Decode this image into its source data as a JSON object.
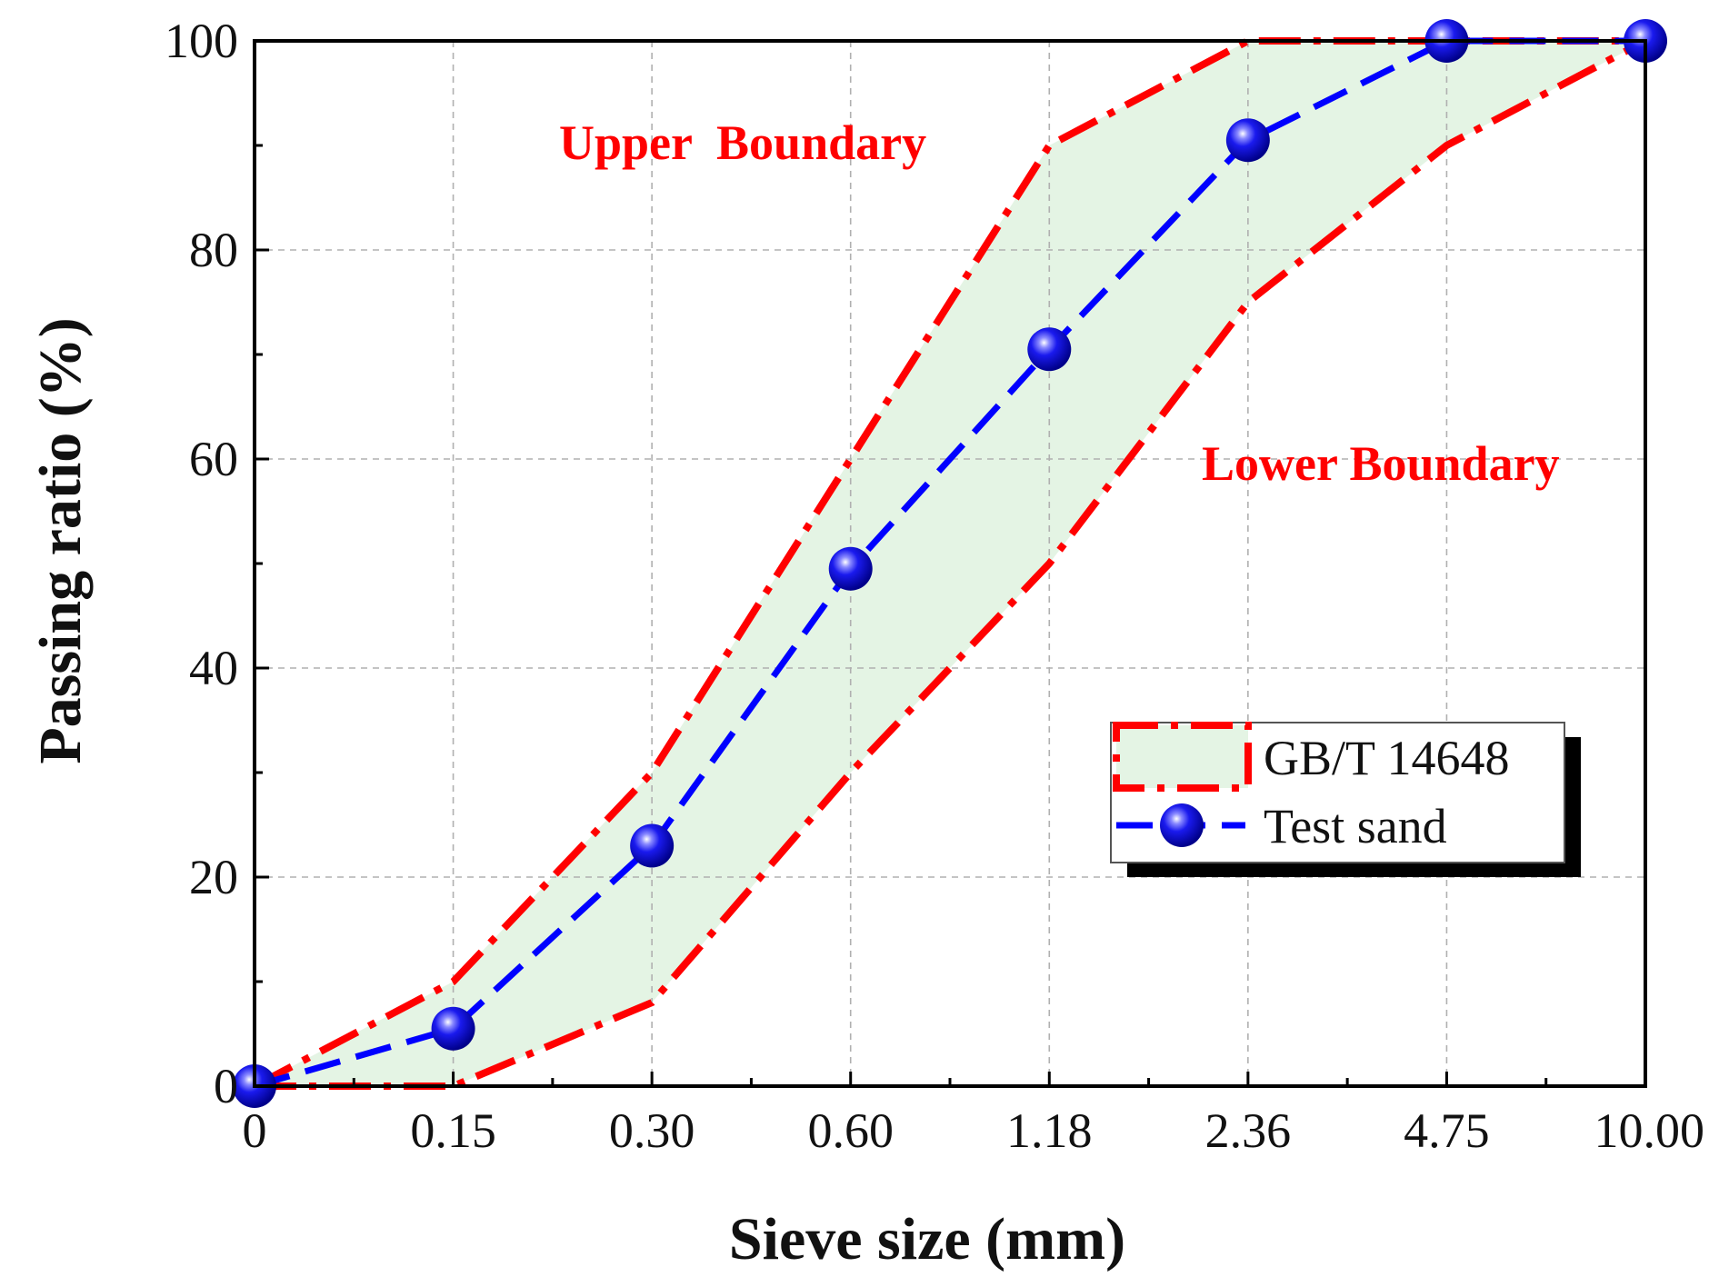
{
  "chart_data": {
    "type": "line",
    "title": "",
    "xlabel": "Sieve size (mm)",
    "ylabel": "Passing ratio (%)",
    "categories": [
      "0",
      "0.15",
      "0.30",
      "0.60",
      "1.18",
      "2.36",
      "4.75",
      "10.00"
    ],
    "ylim": [
      0,
      100
    ],
    "y_ticks": [
      "0",
      "20",
      "40",
      "60",
      "80",
      "100"
    ],
    "grid": true,
    "series": [
      {
        "name": "GB/T 14648",
        "style": "dash-dot band",
        "upper": [
          0,
          10,
          30,
          60,
          90,
          100,
          100,
          100
        ],
        "lower": [
          0,
          0,
          8,
          30,
          50,
          75,
          90,
          100
        ]
      },
      {
        "name": "Test sand",
        "style": "dashed line with circle markers",
        "values": [
          0,
          5.5,
          23,
          49.5,
          70.5,
          90.5,
          100,
          100
        ]
      }
    ],
    "annotations": {
      "upper": "Upper  Boundary",
      "lower": "Lower Boundary"
    },
    "legend_position": "bottom-right"
  },
  "colors": {
    "band_fill": "#e4f4e4",
    "boundary_line": "#ff0000",
    "test_line": "#0000ff",
    "marker_fill": "#0a0adc",
    "grid": "#b0b0b0",
    "axis": "#000000"
  }
}
